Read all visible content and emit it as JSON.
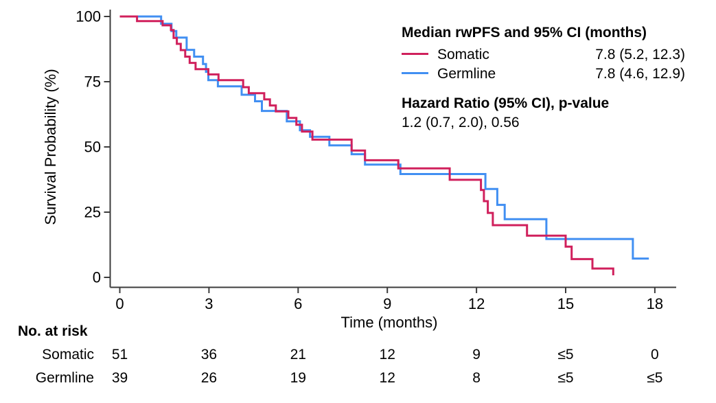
{
  "chart_data": {
    "type": "line",
    "subtype": "kaplan-meier-step",
    "title": "",
    "xlabel": "Time (months)",
    "ylabel": "Survival Probability (%)",
    "xlim": [
      0,
      18
    ],
    "xticks": [
      0,
      3,
      6,
      9,
      12,
      15,
      18
    ],
    "ylim": [
      0,
      100
    ],
    "yticks": [
      0,
      25,
      50,
      75,
      100
    ],
    "grid": false,
    "legend_position": "top-right",
    "series": [
      {
        "name": "Somatic",
        "color": "#D0205C",
        "median": "7.8 (5.2, 12.3)",
        "t_end": 16.6,
        "steps": [
          [
            0,
            100
          ],
          [
            0.58,
            98.2
          ],
          [
            1.44,
            96.6
          ],
          [
            1.72,
            94.8
          ],
          [
            1.81,
            91.8
          ],
          [
            1.92,
            89.5
          ],
          [
            2.05,
            87.1
          ],
          [
            2.2,
            84.6
          ],
          [
            2.35,
            82.2
          ],
          [
            2.55,
            79.8
          ],
          [
            2.98,
            77.8
          ],
          [
            3.32,
            75.6
          ],
          [
            4.15,
            72.9
          ],
          [
            4.34,
            70.6
          ],
          [
            4.86,
            68.2
          ],
          [
            5.05,
            65.9
          ],
          [
            5.25,
            63.6
          ],
          [
            5.67,
            61.1
          ],
          [
            5.94,
            58.5
          ],
          [
            6.13,
            55.9
          ],
          [
            6.48,
            52.8
          ],
          [
            7.8,
            48.6
          ],
          [
            8.25,
            44.9
          ],
          [
            9.37,
            41.8
          ],
          [
            11.1,
            37.4
          ],
          [
            12.15,
            33.5
          ],
          [
            12.25,
            29.2
          ],
          [
            12.38,
            24.7
          ],
          [
            12.55,
            20.0
          ],
          [
            13.7,
            16.0
          ],
          [
            15.0,
            11.8
          ],
          [
            15.2,
            7.0
          ],
          [
            15.9,
            3.4
          ],
          [
            16.6,
            0.8
          ]
        ]
      },
      {
        "name": "Germline",
        "color": "#418FF2",
        "median": "7.8 (4.6, 12.9)",
        "t_end": 17.8,
        "steps": [
          [
            0,
            100
          ],
          [
            1.39,
            97.2
          ],
          [
            1.74,
            94.4
          ],
          [
            1.9,
            91.9
          ],
          [
            2.25,
            87.2
          ],
          [
            2.5,
            84.6
          ],
          [
            2.8,
            81.8
          ],
          [
            2.9,
            78.8
          ],
          [
            2.98,
            75.6
          ],
          [
            3.3,
            73.2
          ],
          [
            4.1,
            70.0
          ],
          [
            4.55,
            67.5
          ],
          [
            4.78,
            63.8
          ],
          [
            5.62,
            59.8
          ],
          [
            6.06,
            56.4
          ],
          [
            6.4,
            53.9
          ],
          [
            7.05,
            50.6
          ],
          [
            7.8,
            47.2
          ],
          [
            8.25,
            43.2
          ],
          [
            9.44,
            39.6
          ],
          [
            12.3,
            33.9
          ],
          [
            12.7,
            27.8
          ],
          [
            12.95,
            22.3
          ],
          [
            14.35,
            14.7
          ],
          [
            17.26,
            7.2
          ]
        ]
      }
    ]
  },
  "legend": {
    "title": "Median rwPFS and 95% CI (months)",
    "hr_title": "Hazard Ratio (95% CI), p-value",
    "hr_value": "1.2 (0.7, 2.0), 0.56"
  },
  "risk_table": {
    "header": "No. at risk",
    "times": [
      0,
      3,
      6,
      9,
      12,
      15,
      18
    ],
    "rows": [
      {
        "name": "Somatic",
        "counts": [
          "51",
          "36",
          "21",
          "12",
          "9",
          "≤5",
          "0"
        ]
      },
      {
        "name": "Germline",
        "counts": [
          "39",
          "26",
          "19",
          "12",
          "8",
          "≤5",
          "≤5"
        ]
      }
    ]
  },
  "colors": {
    "somatic": "#D0205C",
    "germline": "#418FF2",
    "axis": "#3c3c3c",
    "text": "#000000",
    "background": "#ffffff"
  }
}
